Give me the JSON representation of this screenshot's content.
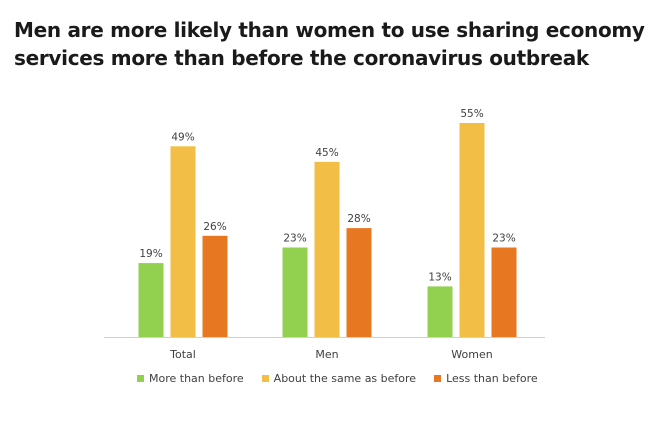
{
  "title_lines": [
    "Men are more likely than women to use sharing economy",
    "services more than before the coronavirus outbreak"
  ],
  "colors": {
    "more": "#92d050",
    "same": "#f2be45",
    "less": "#e87722",
    "axis": "#d0d0d0",
    "label_text": "#404040"
  },
  "chart_data": {
    "type": "bar",
    "categories": [
      "Total",
      "Men",
      "Women"
    ],
    "series": [
      {
        "name": "More than before",
        "values": [
          19,
          23,
          13
        ],
        "labels": [
          "19%",
          "23%",
          "13%"
        ]
      },
      {
        "name": "About the same as before",
        "values": [
          49,
          45,
          55
        ],
        "labels": [
          "49%",
          "45%",
          "55%"
        ]
      },
      {
        "name": "Less than before",
        "values": [
          26,
          28,
          23
        ],
        "labels": [
          "26%",
          "28%",
          "23%"
        ]
      }
    ],
    "unit": "%",
    "ylim": [
      0,
      55
    ],
    "grid": false,
    "legend_position": "bottom"
  }
}
